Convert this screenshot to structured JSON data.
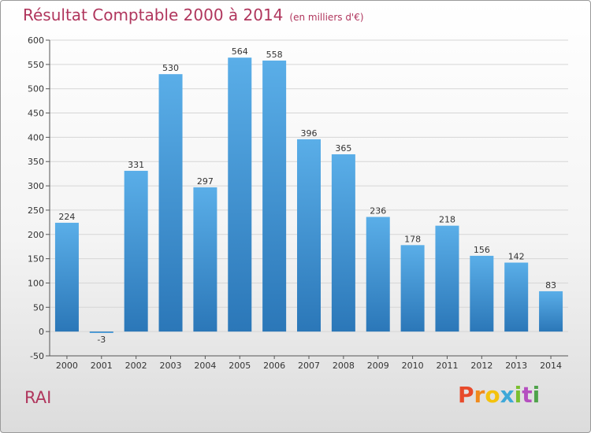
{
  "header": {
    "title": "Résultat Comptable 2000 à 2014",
    "unit": "(en milliers d'€)"
  },
  "footer": {
    "commune": "RAI",
    "logo_letters": [
      "P",
      "r",
      "o",
      "x",
      "i",
      "t",
      "i"
    ]
  },
  "colors": {
    "bar_top": "#5aaee8",
    "bar_bottom": "#2b77b8",
    "title": "#b0365d",
    "grid": "#d6d6d6"
  },
  "chart_data": {
    "type": "bar",
    "categories": [
      "2000",
      "2001",
      "2002",
      "2003",
      "2004",
      "2005",
      "2006",
      "2007",
      "2008",
      "2009",
      "2010",
      "2011",
      "2012",
      "2013",
      "2014"
    ],
    "values": [
      224,
      -3,
      331,
      530,
      297,
      564,
      558,
      396,
      365,
      236,
      178,
      218,
      156,
      142,
      83
    ],
    "title": "Résultat Comptable 2000 à 2014",
    "ylim": [
      -50,
      600
    ],
    "yticks": [
      -50,
      0,
      50,
      100,
      150,
      200,
      250,
      300,
      350,
      400,
      450,
      500,
      550,
      600
    ],
    "grid": true,
    "legend": "none"
  }
}
